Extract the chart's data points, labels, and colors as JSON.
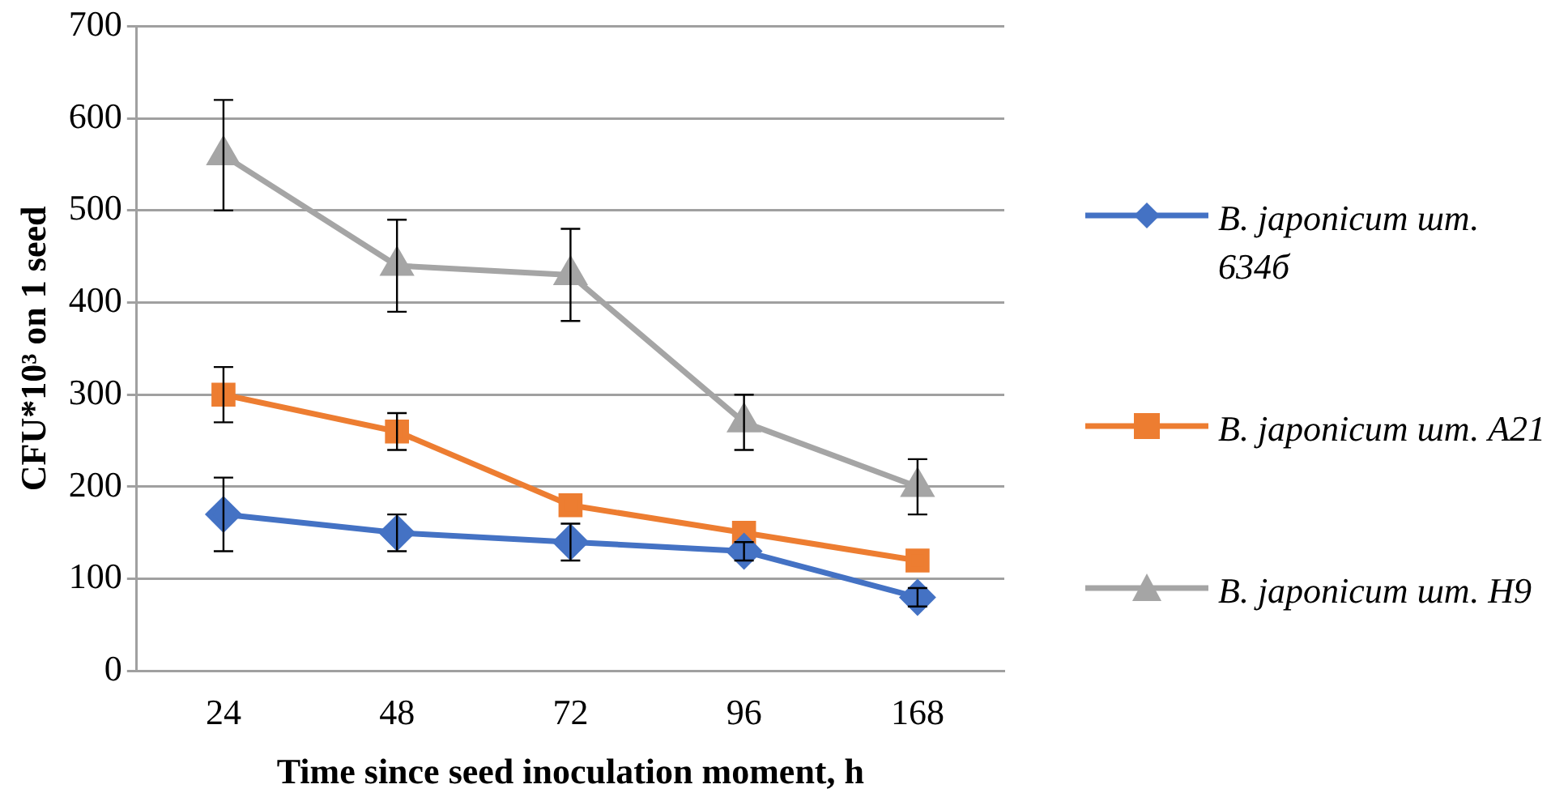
{
  "chart_data": {
    "type": "line",
    "xlabel": "Time since seed inoculation moment, h",
    "ylabel": "CFU*10³ on 1 seed",
    "categories": [
      "24",
      "48",
      "72",
      "96",
      "168"
    ],
    "ylim": [
      0,
      700
    ],
    "yticks": [
      0,
      100,
      200,
      300,
      400,
      500,
      600,
      700
    ],
    "grid": "y",
    "legend": "right",
    "line_style": "solid",
    "series": [
      {
        "name": "B. japonicum шт. 634б",
        "color": "#4472c4",
        "marker": "diamond",
        "values": [
          170,
          150,
          140,
          130,
          80
        ],
        "errors": [
          40,
          20,
          20,
          10,
          10
        ]
      },
      {
        "name": "B. japonicum шт. A21",
        "color": "#ed7d31",
        "marker": "square",
        "values": [
          300,
          260,
          180,
          150,
          120
        ],
        "errors": [
          30,
          20,
          null,
          null,
          null
        ]
      },
      {
        "name": "B. japonicum шт. H9",
        "color": "#a5a5a5",
        "marker": "triangle",
        "values": [
          560,
          440,
          430,
          270,
          200
        ],
        "errors": [
          60,
          50,
          50,
          30,
          30
        ]
      }
    ]
  }
}
